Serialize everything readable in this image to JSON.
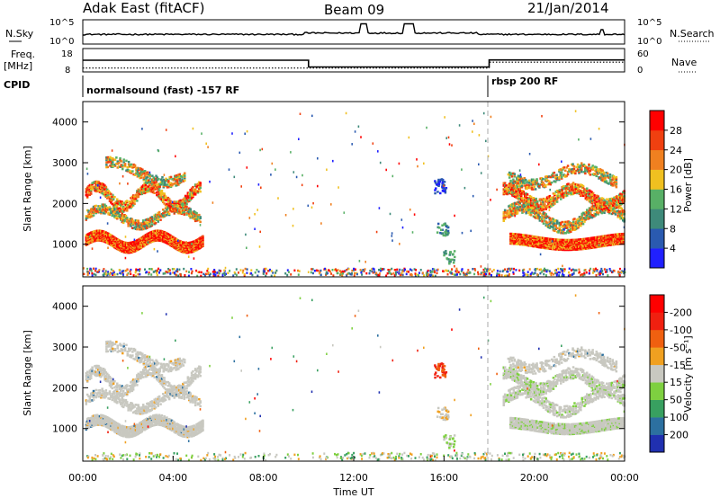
{
  "header": {
    "title_left": "Adak East (fitACF)",
    "title_center": "Beam 09",
    "title_right": "21/Jan/2014"
  },
  "noise_panel": {
    "left_label": "N.Sky",
    "right_label": "N.Search",
    "y_ticks": [
      "10^5",
      "10^0"
    ]
  },
  "freq_panel": {
    "left_label_line1": "Freq.",
    "left_label_line2": "[MHz]",
    "left_ticks": [
      "18",
      "8"
    ],
    "right_label": "Nave",
    "right_ticks": [
      "60",
      "0"
    ]
  },
  "cpid_panel": {
    "label": "CPID",
    "segments": [
      {
        "name": "normalsound (fast) -157 RF",
        "start_hour": 0
      },
      {
        "name": "rbsp 200 RF",
        "start_hour": 18
      }
    ]
  },
  "chart_data": [
    {
      "type": "heatmap",
      "title": "",
      "ylabel": "Slant Range [km]",
      "xlabel": "",
      "y_ticks": [
        1000,
        2000,
        3000,
        4000
      ],
      "ylim": [
        200,
        4500
      ],
      "xlim": [
        0,
        24
      ],
      "colorbar": {
        "label": "Power [dB]",
        "ticks": [
          "4",
          "8",
          "12",
          "16",
          "20",
          "24",
          "28"
        ],
        "colors": [
          "#2020ff",
          "#2a5ab0",
          "#3e8a7a",
          "#58b066",
          "#f0c020",
          "#f08020",
          "#f04010",
          "#ff0000"
        ]
      }
    },
    {
      "type": "heatmap",
      "title": "",
      "ylabel": "Slant Range [km]",
      "xlabel": "Time UT",
      "x_ticks": [
        "00:00",
        "04:00",
        "08:00",
        "12:00",
        "16:00",
        "20:00",
        "00:00"
      ],
      "y_ticks": [
        1000,
        2000,
        3000,
        4000
      ],
      "ylim": [
        200,
        4500
      ],
      "xlim": [
        0,
        24
      ],
      "colorbar": {
        "label": "Velocity [m s⁻¹]",
        "ticks": [
          "200",
          "100",
          "50",
          "15",
          "-15",
          "-50",
          "-100",
          "-200"
        ],
        "colors": [
          "#2030b0",
          "#2c70a0",
          "#38a060",
          "#7ed040",
          "#c8c8c0",
          "#f0a020",
          "#f06010",
          "#f02010",
          "#ff0000"
        ]
      }
    }
  ],
  "freq_data": {
    "hours": [
      0,
      10,
      10,
      18,
      18,
      24
    ],
    "freq_mhz": [
      13.5,
      13.5,
      10.6,
      10.6,
      13.6,
      13.6
    ],
    "nave": [
      10,
      10,
      10,
      10,
      25,
      25
    ]
  }
}
